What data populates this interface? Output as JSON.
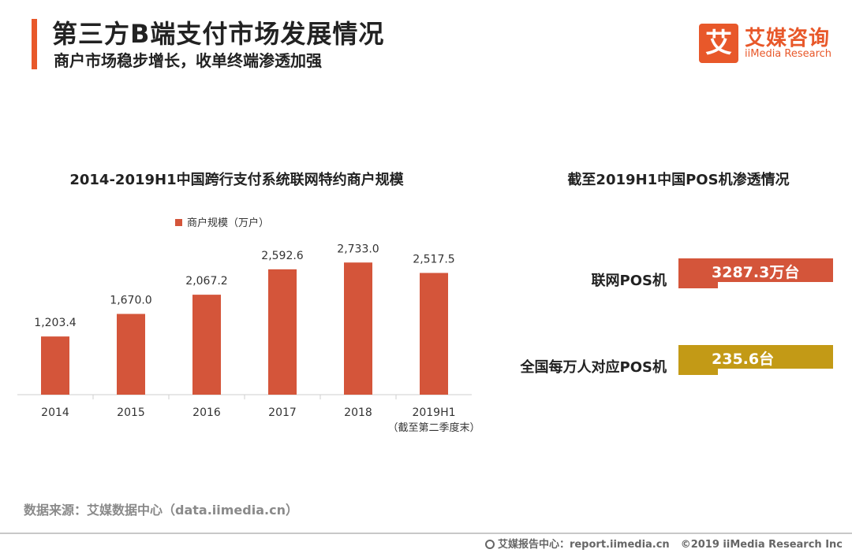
{
  "header": {
    "title": "第三方B端支付市场发展情况",
    "subtitle": "商户市场稳步增长，收单终端渗透加强"
  },
  "logo": {
    "mark": "艾",
    "cn": "艾媒咨询",
    "en": "iiMedia Research"
  },
  "colors": {
    "accent": "#e8582a",
    "bar": "#d4553a",
    "gold": "#c39a16"
  },
  "chart_data": [
    {
      "type": "bar",
      "title": "2014-2019H1中国跨行支付系统联网特约商户规模",
      "categories": [
        "2014",
        "2015",
        "2016",
        "2017",
        "2018",
        "2019H1"
      ],
      "category_note": "（截至第二季度末）",
      "series": [
        {
          "name": "商户规模（万户）",
          "values": [
            1203.4,
            1670.0,
            2067.2,
            2592.6,
            2733.0,
            2517.5
          ]
        }
      ],
      "value_labels": [
        "1,203.4",
        "1,670.0",
        "2,067.2",
        "2,592.6",
        "2,733.0",
        "2,517.5"
      ],
      "legend_position": "top",
      "xlabel": "",
      "ylabel": "",
      "ylim": [
        0,
        2900
      ],
      "grid": false
    },
    {
      "type": "bar",
      "title": "截至2019H1中国POS机渗透情况",
      "categories": [
        "联网POS机",
        "全国每万人对应POS机"
      ],
      "values": [
        3287.3,
        235.6
      ],
      "units": [
        "万台",
        "台"
      ],
      "value_labels": [
        "3287.3万台",
        "235.6台"
      ]
    }
  ],
  "source": "数据来源：艾媒数据中心（data.iimedia.cn）",
  "footer": {
    "center": "艾媒报告中心：report.iimedia.cn",
    "copyright": "©2019  iiMedia Research  Inc"
  }
}
